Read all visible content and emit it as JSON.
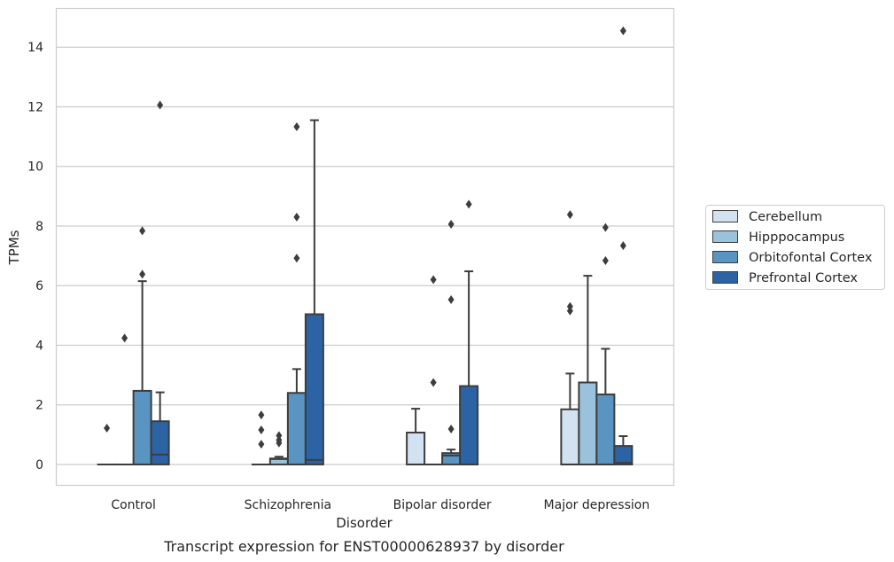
{
  "chart_data": {
    "type": "boxplot",
    "caption": "Transcript expression for ENST00000628937 by disorder",
    "xlabel": "Disorder",
    "ylabel": "TPMs",
    "ylim": [
      -0.7,
      15.3
    ],
    "yticks": [
      0,
      2,
      4,
      6,
      8,
      10,
      12,
      14
    ],
    "grid": "horizontal",
    "legend_position": "right",
    "categories": [
      "Control",
      "Schizophrenia",
      "Bipolar disorder",
      "Major depression"
    ],
    "series": [
      {
        "name": "Cerebellum",
        "color": "#d3e2f0",
        "boxes": [
          {
            "q1": 0,
            "median": 0,
            "q3": 0,
            "whisker_low": 0,
            "whisker_high": 0,
            "outliers": [
              1.22
            ]
          },
          {
            "q1": 0,
            "median": 0,
            "q3": 0,
            "whisker_low": 0,
            "whisker_high": 0,
            "outliers": [
              0.68,
              1.16,
              1.66
            ]
          },
          {
            "q1": 0,
            "median": 0,
            "q3": 1.07,
            "whisker_low": 0,
            "whisker_high": 1.87,
            "outliers": []
          },
          {
            "q1": 0,
            "median": 0,
            "q3": 1.85,
            "whisker_low": 0,
            "whisker_high": 3.05,
            "outliers": [
              5.15,
              5.3,
              8.38
            ]
          }
        ]
      },
      {
        "name": "Hipppocampus",
        "color": "#9bc2dc",
        "boxes": [
          {
            "q1": 0,
            "median": 0,
            "q3": 0,
            "whisker_low": 0,
            "whisker_high": 0,
            "outliers": [
              4.24
            ]
          },
          {
            "q1": 0,
            "median": 0.18,
            "q3": 0.2,
            "whisker_low": 0,
            "whisker_high": 0.26,
            "outliers": [
              0.72,
              0.82,
              0.97
            ]
          },
          {
            "q1": 0,
            "median": 0,
            "q3": 0,
            "whisker_low": 0,
            "whisker_high": 0,
            "outliers": [
              2.75,
              6.2
            ]
          },
          {
            "q1": 0,
            "median": 0,
            "q3": 2.75,
            "whisker_low": 0,
            "whisker_high": 6.33,
            "outliers": []
          }
        ]
      },
      {
        "name": "Orbitofontal Cortex",
        "color": "#5a94c2",
        "boxes": [
          {
            "q1": 0,
            "median": 0,
            "q3": 2.47,
            "whisker_low": 0,
            "whisker_high": 6.15,
            "outliers": [
              6.38,
              7.84
            ]
          },
          {
            "q1": 0,
            "median": 0,
            "q3": 2.4,
            "whisker_low": 0,
            "whisker_high": 3.2,
            "outliers": [
              6.92,
              8.3,
              11.33
            ]
          },
          {
            "q1": 0,
            "median": 0.3,
            "q3": 0.38,
            "whisker_low": 0,
            "whisker_high": 0.5,
            "outliers": [
              1.19,
              5.53,
              8.06
            ]
          },
          {
            "q1": 0,
            "median": 0,
            "q3": 2.35,
            "whisker_low": 0,
            "whisker_high": 3.88,
            "outliers": [
              6.84,
              7.95
            ]
          }
        ]
      },
      {
        "name": "Prefrontal Cortex",
        "color": "#2c63a4",
        "boxes": [
          {
            "q1": 0,
            "median": 0.33,
            "q3": 1.45,
            "whisker_low": 0,
            "whisker_high": 2.42,
            "outliers": [
              12.06
            ]
          },
          {
            "q1": 0,
            "median": 0.15,
            "q3": 5.04,
            "whisker_low": 0,
            "whisker_high": 11.55,
            "outliers": []
          },
          {
            "q1": 0,
            "median": 0,
            "q3": 2.63,
            "whisker_low": 0,
            "whisker_high": 6.48,
            "outliers": [
              8.73
            ]
          },
          {
            "q1": 0,
            "median": 0.05,
            "q3": 0.62,
            "whisker_low": 0,
            "whisker_high": 0.95,
            "outliers": [
              7.34,
              14.55
            ]
          }
        ]
      }
    ]
  }
}
